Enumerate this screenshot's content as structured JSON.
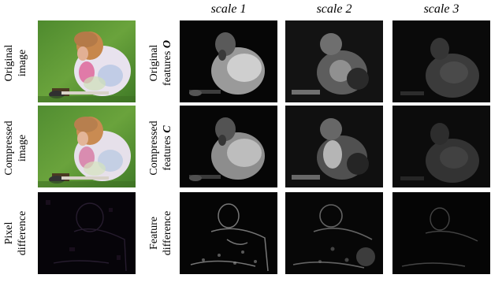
{
  "columns": [
    "scale 1",
    "scale 2",
    "scale 3"
  ],
  "rows": [
    {
      "left_label": [
        "Original",
        "image"
      ],
      "mid_label_line1": "Original",
      "mid_label_line2": "features",
      "mid_symbol": "O"
    },
    {
      "left_label": [
        "Compressed",
        "image"
      ],
      "mid_label_line1": "Compressed",
      "mid_label_line2": "features",
      "mid_symbol": "C"
    },
    {
      "left_label": [
        "Pixel",
        "difference"
      ],
      "mid_label_line1": "Feature",
      "mid_label_line2": "difference",
      "mid_symbol": ""
    }
  ]
}
